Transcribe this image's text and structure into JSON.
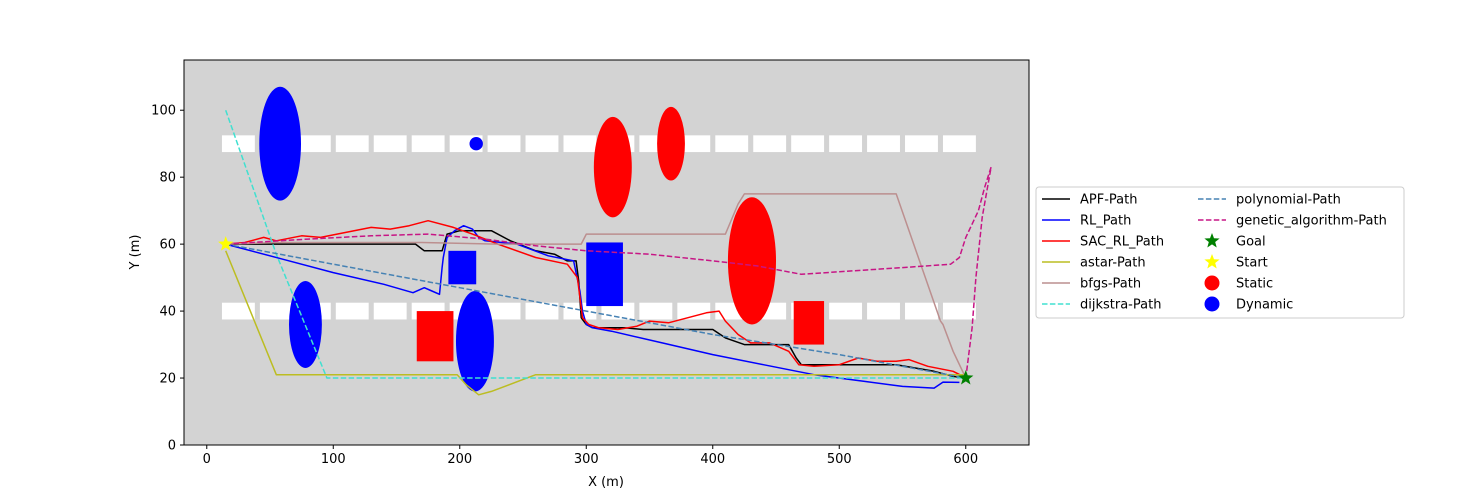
{
  "chart_data": {
    "type": "line",
    "title": "",
    "xlabel": "X (m)",
    "ylabel": "Y (m)",
    "xlim": [
      -18,
      650
    ],
    "ylim": [
      0,
      115
    ],
    "xticks": [
      0,
      100,
      200,
      300,
      400,
      500,
      600
    ],
    "yticks": [
      0,
      20,
      40,
      60,
      80,
      100
    ],
    "background": "#d3d3d3",
    "legend_position": "outside right",
    "lanes": [
      {
        "y": 90,
        "x_start": 12,
        "x_end": 608,
        "dash": 26,
        "gap": 4
      },
      {
        "y": 40,
        "x_start": 12,
        "x_end": 608,
        "dash": 26,
        "gap": 4
      }
    ],
    "obstacles": [
      {
        "kind": "ellipse",
        "type": "Dynamic",
        "color": "#0000ff",
        "cx": 58,
        "cy": 90,
        "rx": 16.5,
        "ry": 17
      },
      {
        "kind": "ellipse",
        "type": "Dynamic",
        "color": "#0000ff",
        "cx": 78,
        "cy": 36,
        "rx": 13,
        "ry": 13
      },
      {
        "kind": "circle",
        "type": "Dynamic",
        "color": "#0000ff",
        "cx": 213,
        "cy": 90,
        "r": 2
      },
      {
        "kind": "rect",
        "type": "Dynamic",
        "color": "#0000ff",
        "x0": 191,
        "x1": 213,
        "y0": 48,
        "y1": 58
      },
      {
        "kind": "ellipse",
        "type": "Dynamic",
        "color": "#0000ff",
        "cx": 212,
        "cy": 31,
        "rx": 15,
        "ry": 15
      },
      {
        "kind": "rect",
        "type": "Dynamic",
        "color": "#0000ff",
        "x0": 300,
        "x1": 329,
        "y0": 41.5,
        "y1": 60.5
      },
      {
        "kind": "rect",
        "type": "Static",
        "color": "#ff0000",
        "x0": 166,
        "x1": 195,
        "y0": 25,
        "y1": 40
      },
      {
        "kind": "ellipse",
        "type": "Static",
        "color": "#ff0000",
        "cx": 321,
        "cy": 83,
        "rx": 15,
        "ry": 15
      },
      {
        "kind": "ellipse",
        "type": "Static",
        "color": "#ff0000",
        "cx": 367,
        "cy": 90,
        "rx": 11,
        "ry": 11
      },
      {
        "kind": "ellipse",
        "type": "Static",
        "color": "#ff0000",
        "cx": 431,
        "cy": 55,
        "rx": 19,
        "ry": 19
      },
      {
        "kind": "rect",
        "type": "Static",
        "color": "#ff0000",
        "x0": 464,
        "x1": 488,
        "y0": 30,
        "y1": 43
      }
    ],
    "series": [
      {
        "name": "APF-Path",
        "color": "#000000",
        "dash": "solid",
        "x": [
          15,
          40,
          100,
          165,
          172,
          178,
          186,
          190,
          200,
          225,
          240,
          260,
          275,
          285,
          292,
          294,
          296,
          300,
          305,
          312,
          320,
          330,
          345,
          365,
          380,
          400,
          410,
          425,
          430,
          445,
          460,
          466,
          470,
          480,
          500,
          520,
          545,
          560,
          575,
          590,
          600
        ],
        "y": [
          60,
          60,
          60,
          60,
          58,
          58,
          58,
          63,
          64,
          64,
          61,
          58,
          57,
          55,
          55,
          49,
          38,
          36,
          35,
          35,
          35,
          35,
          34.5,
          34.5,
          34.5,
          34.5,
          32,
          30,
          30,
          30,
          30,
          26,
          24,
          24,
          24,
          24,
          24,
          23,
          22,
          20.5,
          20
        ]
      },
      {
        "name": "RL_Path",
        "color": "#0000ff",
        "dash": "solid",
        "x": [
          15,
          60,
          100,
          140,
          163,
          172,
          178,
          184,
          186,
          187,
          190,
          196,
          203,
          210,
          215,
          220,
          245,
          270,
          290,
          295,
          297,
          300,
          305,
          320,
          360,
          400,
          440,
          480,
          520,
          550,
          575,
          582,
          595
        ],
        "y": [
          60,
          55.5,
          51.5,
          48,
          45.5,
          47,
          46,
          45,
          53,
          56,
          62,
          64,
          65.5,
          64.5,
          62,
          61,
          60,
          56.5,
          55,
          46,
          40,
          36,
          35,
          34,
          30.5,
          27,
          24,
          21,
          19,
          17.5,
          17,
          18.8,
          18.7
        ]
      },
      {
        "name": "SAC_RL_Path",
        "color": "#ff0000",
        "dash": "solid",
        "x": [
          15,
          30,
          45,
          55,
          75,
          90,
          110,
          130,
          145,
          160,
          175,
          195,
          210,
          230,
          260,
          285,
          293,
          297,
          302,
          310,
          325,
          340,
          350,
          365,
          380,
          395,
          405,
          410,
          420,
          430,
          445,
          460,
          468,
          480,
          500,
          515,
          530,
          545,
          555,
          570,
          590,
          598
        ],
        "y": [
          60,
          60.5,
          62,
          61,
          62.5,
          62,
          63.5,
          65,
          64.5,
          65.5,
          67,
          65,
          63,
          60,
          56,
          54,
          50,
          38,
          36,
          35,
          34.5,
          35.5,
          37,
          36.5,
          38,
          39.5,
          40,
          37,
          33,
          30.5,
          30.5,
          28,
          24,
          23.5,
          24,
          26,
          25,
          25,
          25.5,
          23.5,
          22,
          20.5
        ]
      },
      {
        "name": "astar-Path",
        "color": "#bcbd22",
        "dash": "solid",
        "x": [
          15,
          55,
          100,
          150,
          198,
          205,
          215,
          225,
          260,
          320,
          400,
          500,
          600
        ],
        "y": [
          58,
          21,
          21,
          21,
          21,
          18,
          15,
          16,
          21,
          21,
          21,
          21,
          21
        ]
      },
      {
        "name": "bfgs-Path",
        "color": "#bc8f8f",
        "dash": "solid",
        "x": [
          15,
          60,
          120,
          170,
          230,
          296,
          300,
          350,
          410,
          420,
          425,
          480,
          545,
          580,
          582,
          590,
          600
        ],
        "y": [
          60,
          60.5,
          60.5,
          60.5,
          60,
          60,
          63,
          63,
          63,
          72,
          75,
          75,
          75,
          37,
          36,
          28,
          20
        ]
      },
      {
        "name": "dijkstra-Path",
        "color": "#40e0d0",
        "dash": "dashed",
        "x": [
          15,
          55,
          95,
          200,
          400,
          600
        ],
        "y": [
          100,
          57,
          20,
          20,
          20,
          20
        ]
      },
      {
        "name": "polynomial-Path",
        "color": "#4682b4",
        "dash": "dashed",
        "x": [
          15,
          100,
          200,
          300,
          400,
          500,
          600
        ],
        "y": [
          60,
          54,
          47,
          40,
          33,
          27,
          20
        ]
      },
      {
        "name": "genetic_algorithm-Path",
        "color": "#c71585",
        "dash": "dashed",
        "x": [
          15,
          80,
          130,
          175,
          220,
          260,
          300,
          350,
          400,
          435,
          470,
          510,
          550,
          588,
          595,
          600,
          610,
          615,
          620,
          613,
          608,
          605,
          600
        ],
        "y": [
          60,
          61.5,
          62.5,
          63,
          61.5,
          59.5,
          58,
          57,
          55,
          53.5,
          51,
          52,
          53,
          54,
          56,
          62,
          70,
          77,
          83,
          68,
          50,
          35,
          20
        ]
      }
    ],
    "markers": [
      {
        "name": "Goal",
        "shape": "star",
        "color": "#008000",
        "x": 600,
        "y": 20
      },
      {
        "name": "Start",
        "shape": "star",
        "color": "#ffff00",
        "x": 15,
        "y": 60
      }
    ],
    "legend": {
      "col1": [
        "APF-Path",
        "RL_Path",
        "SAC_RL_Path",
        "astar-Path",
        "bfgs-Path",
        "dijkstra-Path"
      ],
      "col2": [
        "polynomial-Path",
        "genetic_algorithm-Path",
        "Goal",
        "Start",
        "Static",
        "Dynamic"
      ],
      "colors": {
        "APF-Path": "#000000",
        "RL_Path": "#0000ff",
        "SAC_RL_Path": "#ff0000",
        "astar-Path": "#bcbd22",
        "bfgs-Path": "#bc8f8f",
        "dijkstra-Path": "#40e0d0",
        "polynomial-Path": "#4682b4",
        "genetic_algorithm-Path": "#c71585",
        "Goal": "#008000",
        "Start": "#ffff00",
        "Static": "#ff0000",
        "Dynamic": "#0000ff"
      }
    }
  }
}
